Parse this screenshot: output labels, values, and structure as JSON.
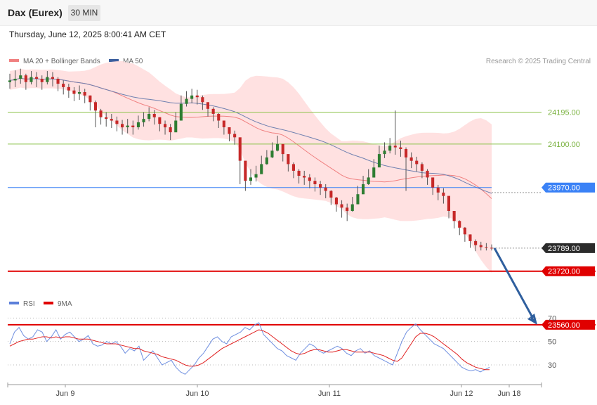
{
  "header": {
    "title": "Dax (Eurex)",
    "timeframe": "30 MIN",
    "timestamp": "Thursday, June 12, 2025 8:00:41 AM CET"
  },
  "legend": {
    "ma20_bb": "MA 20 + Bollinger Bands",
    "ma50": "MA 50",
    "credit": "Research © 2025 Trading Central"
  },
  "rsi_legend": {
    "rsi": "RSI",
    "ma9": "9MA"
  },
  "colors": {
    "bull": "#2e7d32",
    "bear": "#c62828",
    "bb_fill": "#ffdcdc",
    "ma20": "#f08080",
    "ma50": "#7080b0",
    "resistance": "#8bc34a",
    "pivot": "#3b82f6",
    "support": "#e00000",
    "last_price": "#2b2b2b",
    "arrow": "#2f5f9e",
    "rsi": "#6f8fe0",
    "rsi_ma": "#e02020"
  },
  "chart_data": [
    {
      "type": "candlestick",
      "title": "Dax (Eurex)",
      "timeframe": "30 MIN",
      "x_ticks": [
        "Jun 9",
        "Jun 10",
        "Jun 11",
        "Jun 12",
        "Jun 18"
      ],
      "levels": [
        {
          "value": 24195.0,
          "label": "24195.00",
          "kind": "resistance"
        },
        {
          "value": 24100.0,
          "label": "24100.00",
          "kind": "resistance"
        },
        {
          "value": 23970.0,
          "label": "23970.00",
          "kind": "pivot"
        },
        {
          "value": 23789.0,
          "label": "23789.00",
          "kind": "last"
        },
        {
          "value": 23720.0,
          "label": "23720.00",
          "kind": "support"
        },
        {
          "value": 23560.0,
          "label": "23560.00",
          "kind": "support"
        }
      ],
      "target_arrow": {
        "from": 23789,
        "to": 23560
      },
      "close_path": [
        24290,
        24295,
        24305,
        24285,
        24300,
        24295,
        24285,
        24300,
        24295,
        24280,
        24270,
        24260,
        24250,
        24255,
        24245,
        24225,
        24200,
        24180,
        24175,
        24170,
        24160,
        24150,
        24155,
        24150,
        24165,
        24175,
        24190,
        24180,
        24160,
        24150,
        24135,
        24170,
        24220,
        24235,
        24245,
        24240,
        24225,
        24205,
        24190,
        24170,
        24150,
        24130,
        24120,
        24050,
        23990,
        24000,
        24010,
        24040,
        24060,
        24080,
        24100,
        24070,
        24040,
        24020,
        24005,
        24000,
        23990,
        23980,
        23970,
        23960,
        23940,
        23920,
        23910,
        23900,
        23920,
        23950,
        23980,
        24000,
        24030,
        24070,
        24080,
        24095,
        24090,
        24085,
        24060,
        24050,
        24040,
        24020,
        24000,
        23970,
        23955,
        23945,
        23900,
        23870,
        23850,
        23830,
        23810,
        23798,
        23792,
        23790,
        23789
      ],
      "high_path": [
        24310,
        24320,
        24325,
        24310,
        24318,
        24315,
        24305,
        24318,
        24315,
        24300,
        24290,
        24280,
        24270,
        24275,
        24265,
        24245,
        24230,
        24205,
        24195,
        24190,
        24182,
        24172,
        24175,
        24170,
        24185,
        24195,
        24210,
        24202,
        24180,
        24170,
        24160,
        24195,
        24245,
        24258,
        24265,
        24262,
        24245,
        24225,
        24210,
        24192,
        24170,
        24150,
        24140,
        24080,
        24020,
        24025,
        24035,
        24065,
        24082,
        24105,
        24125,
        24095,
        24065,
        24045,
        24025,
        24020,
        24010,
        24000,
        23990,
        23980,
        23962,
        23942,
        23932,
        23922,
        23942,
        23975,
        24005,
        24025,
        24055,
        24095,
        24105,
        24118,
        24200,
        24110,
        24090,
        24075,
        24062,
        24045,
        24025,
        23995,
        23978,
        23968,
        23925,
        23892,
        23872,
        23852,
        23830,
        23815,
        23808,
        23804,
        23800
      ],
      "low_path": [
        24265,
        24270,
        24280,
        24262,
        24278,
        24270,
        24262,
        24278,
        24272,
        24258,
        24248,
        24238,
        24228,
        24232,
        24222,
        24200,
        24150,
        24158,
        24152,
        24148,
        24138,
        24128,
        24132,
        24128,
        24143,
        24152,
        24168,
        24158,
        24138,
        24128,
        24112,
        24145,
        24198,
        24212,
        24222,
        24218,
        24202,
        24182,
        24168,
        24148,
        24128,
        24108,
        24098,
        23980,
        23960,
        23978,
        23988,
        24018,
        24038,
        24058,
        24078,
        24048,
        24018,
        23998,
        23982,
        23978,
        23968,
        23958,
        23948,
        23938,
        23918,
        23898,
        23880,
        23870,
        23898,
        23928,
        23958,
        23978,
        24008,
        24048,
        24058,
        24072,
        24068,
        24062,
        23960,
        24028,
        24018,
        23998,
        23978,
        23948,
        23932,
        23922,
        23878,
        23848,
        23828,
        23808,
        23790,
        23780,
        23782,
        23782,
        23782
      ],
      "ylim": [
        23480,
        24400
      ]
    },
    {
      "type": "line",
      "title": "RSI",
      "series": [
        {
          "name": "RSI"
        },
        {
          "name": "9MA"
        }
      ],
      "ylim": [
        15,
        75
      ],
      "y_ticks": [
        70,
        50,
        30
      ],
      "rsi": [
        48,
        58,
        62,
        55,
        52,
        54,
        60,
        58,
        50,
        54,
        60,
        52,
        56,
        58,
        54,
        50,
        52,
        55,
        48,
        46,
        47,
        50,
        48,
        50,
        46,
        40,
        44,
        42,
        46,
        34,
        38,
        42,
        36,
        30,
        32,
        34,
        28,
        24,
        22,
        26,
        30,
        36,
        40,
        46,
        52,
        54,
        50,
        48,
        54,
        56,
        58,
        62,
        60,
        64,
        66,
        56,
        52,
        48,
        44,
        42,
        38,
        36,
        34,
        40,
        44,
        48,
        46,
        42,
        40,
        42,
        44,
        46,
        44,
        40,
        38,
        42,
        44,
        40,
        42,
        38,
        36,
        34,
        32,
        30,
        40,
        50,
        58,
        62,
        65,
        60,
        56,
        52,
        48,
        46,
        44,
        40,
        36,
        32,
        28,
        26,
        25,
        26,
        24,
        26,
        28
      ],
      "rsi_ma": [
        46,
        48,
        50,
        51,
        52,
        52,
        53,
        54,
        54,
        53,
        54,
        53,
        54,
        54,
        53,
        52,
        52,
        52,
        51,
        50,
        49,
        48,
        48,
        48,
        47,
        46,
        45,
        44,
        44,
        42,
        41,
        40,
        39,
        37,
        36,
        35,
        34,
        32,
        30,
        29,
        29,
        30,
        32,
        35,
        38,
        41,
        44,
        46,
        48,
        50,
        52,
        54,
        56,
        58,
        60,
        59,
        57,
        54,
        51,
        48,
        45,
        42,
        40,
        39,
        40,
        42,
        43,
        43,
        42,
        41,
        41,
        42,
        43,
        43,
        42,
        41,
        41,
        41,
        41,
        40,
        39,
        38,
        36,
        34,
        33,
        36,
        42,
        48,
        54,
        57,
        57,
        56,
        54,
        51,
        48,
        45,
        42,
        39,
        35,
        32,
        30,
        28,
        27,
        26,
        26
      ]
    }
  ]
}
